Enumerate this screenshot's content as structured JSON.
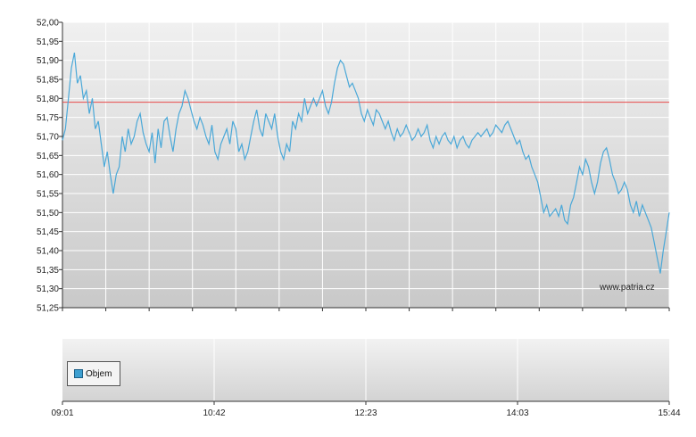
{
  "chart_data": {
    "type": "line",
    "watermark": "www.patria.cz",
    "ylim": [
      51.25,
      52.0
    ],
    "y_ticks": [
      "52,00",
      "51,95",
      "51,90",
      "51,85",
      "51,80",
      "51,75",
      "51,70",
      "51,65",
      "51,60",
      "51,55",
      "51,50",
      "51,45",
      "51,40",
      "51,35",
      "51,30",
      "51,25"
    ],
    "x_labels": [
      "09:01",
      "10:42",
      "12:23",
      "14:03",
      "15:44"
    ],
    "reference_line": {
      "value": 51.79,
      "color": "#e84a4a"
    },
    "line_color": "#4aa8d8",
    "legend": {
      "label": "Objem",
      "color": "#3d9fd0"
    },
    "grid": true,
    "series": [
      {
        "values": [
          51.69,
          51.72,
          51.8,
          51.88,
          51.92,
          51.84,
          51.86,
          51.8,
          51.82,
          51.76,
          51.8,
          51.72,
          51.74,
          51.68,
          51.62,
          51.66,
          51.6,
          51.55,
          51.6,
          51.62,
          51.7,
          51.66,
          51.72,
          51.68,
          51.7,
          51.74,
          51.76,
          51.71,
          51.68,
          51.66,
          51.71,
          51.63,
          51.72,
          51.67,
          51.74,
          51.75,
          51.7,
          51.66,
          51.72,
          51.76,
          51.78,
          51.82,
          51.8,
          51.77,
          51.74,
          51.72,
          51.75,
          51.73,
          51.7,
          51.68,
          51.73,
          51.66,
          51.64,
          51.68,
          51.7,
          51.72,
          51.68,
          51.74,
          51.72,
          51.66,
          51.68,
          51.64,
          51.66,
          51.7,
          51.74,
          51.77,
          51.72,
          51.7,
          51.76,
          51.74,
          51.72,
          51.76,
          51.7,
          51.66,
          51.64,
          51.68,
          51.66,
          51.74,
          51.72,
          51.76,
          51.74,
          51.8,
          51.76,
          51.78,
          51.8,
          51.78,
          51.8,
          51.82,
          51.78,
          51.76,
          51.79,
          51.84,
          51.88,
          51.9,
          51.89,
          51.86,
          51.83,
          51.84,
          51.82,
          51.8,
          51.76,
          51.74,
          51.77,
          51.75,
          51.73,
          51.77,
          51.76,
          51.74,
          51.72,
          51.74,
          51.71,
          51.69,
          51.72,
          51.7,
          51.71,
          51.73,
          51.71,
          51.69,
          51.7,
          51.72,
          51.7,
          51.71,
          51.73,
          51.69,
          51.67,
          51.7,
          51.68,
          51.7,
          51.71,
          51.69,
          51.68,
          51.7,
          51.67,
          51.69,
          51.7,
          51.68,
          51.67,
          51.69,
          51.7,
          51.71,
          51.7,
          51.71,
          51.72,
          51.7,
          51.71,
          51.73,
          51.72,
          51.71,
          51.73,
          51.74,
          51.72,
          51.7,
          51.68,
          51.69,
          51.66,
          51.64,
          51.65,
          51.62,
          51.6,
          51.58,
          51.54,
          51.5,
          51.52,
          51.49,
          51.5,
          51.51,
          51.49,
          51.52,
          51.48,
          51.47,
          51.52,
          51.54,
          51.58,
          51.62,
          51.6,
          51.64,
          51.62,
          51.58,
          51.55,
          51.58,
          51.63,
          51.66,
          51.67,
          51.64,
          51.6,
          51.58,
          51.55,
          51.56,
          51.58,
          51.56,
          51.52,
          51.5,
          51.53,
          51.49,
          51.52,
          51.5,
          51.48,
          51.46,
          51.42,
          51.38,
          51.34,
          51.4,
          51.45,
          51.5
        ]
      }
    ]
  }
}
